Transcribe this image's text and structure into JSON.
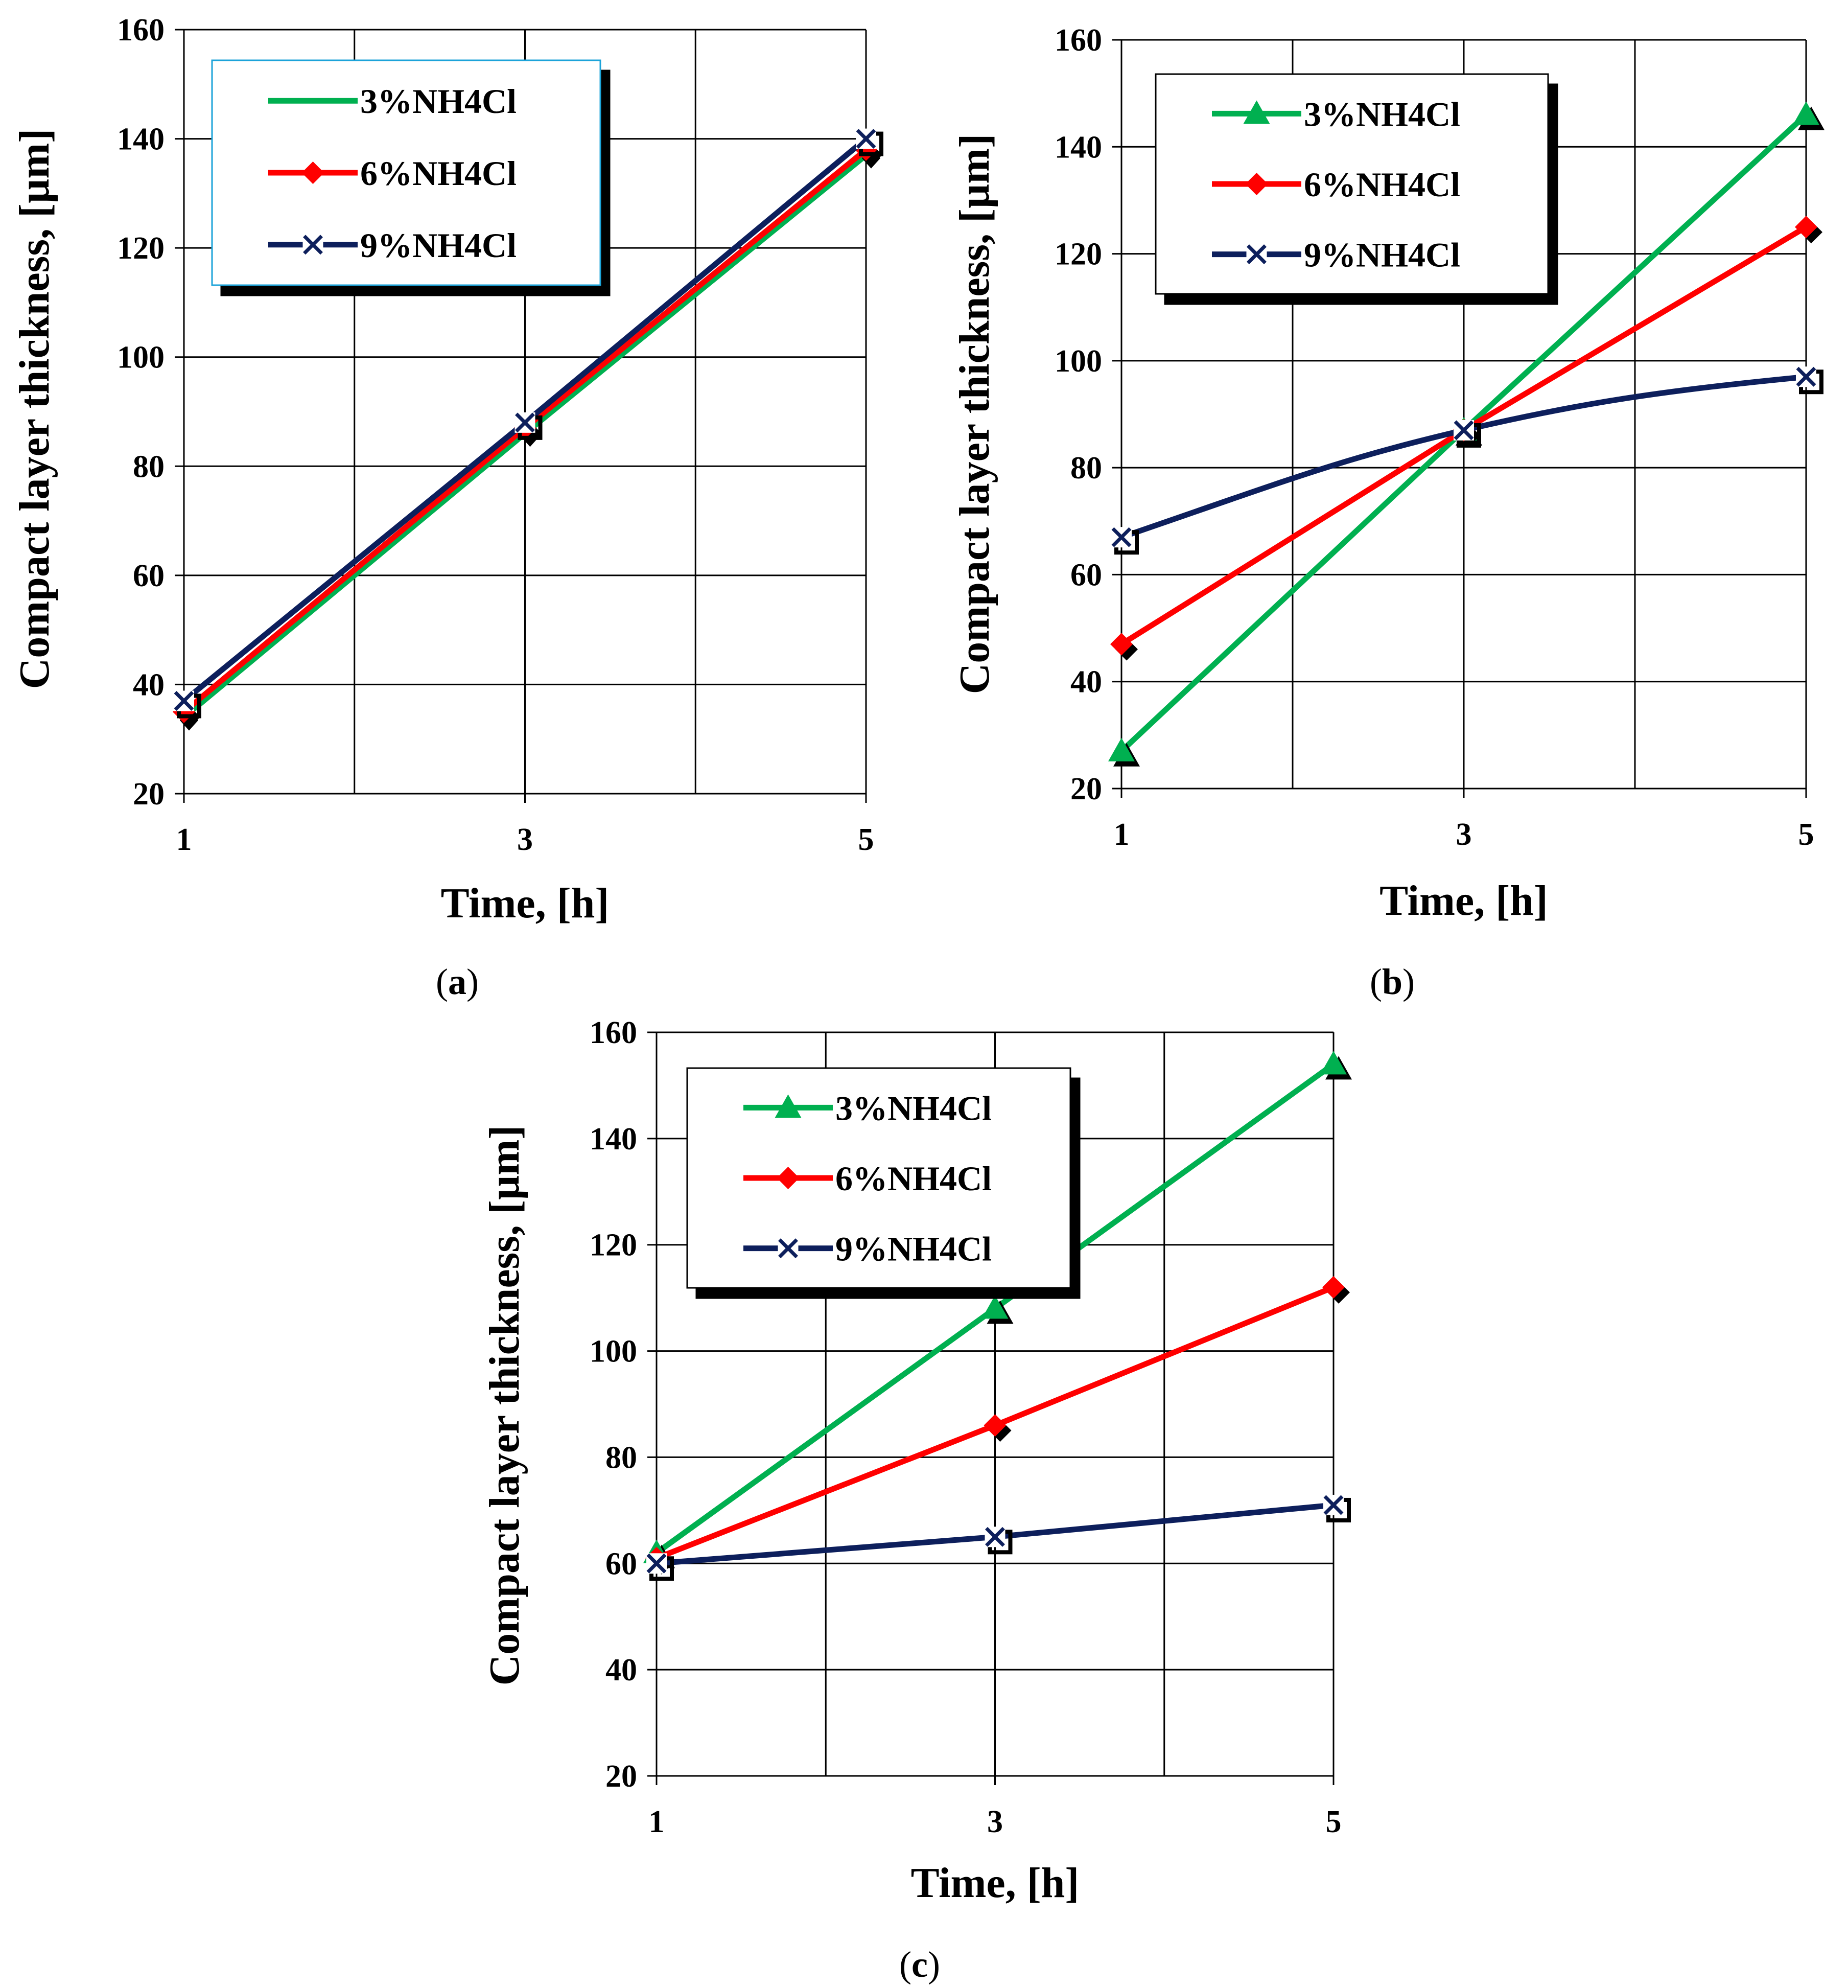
{
  "colors": {
    "green": "#00b050",
    "red": "#ff0000",
    "navy": "#0d1f5c",
    "shadow": "#000000",
    "grid": "#000000"
  },
  "chart_data": [
    {
      "id": "a",
      "type": "line",
      "caption": "a",
      "x": [
        1,
        3,
        5
      ],
      "xticks": [
        "1",
        "3",
        "5"
      ],
      "xlim": [
        1,
        5
      ],
      "ylim": [
        20,
        160
      ],
      "yticks": [
        "20",
        "40",
        "60",
        "80",
        "100",
        "120",
        "140",
        "160"
      ],
      "xlabel": "Time, [h]",
      "ylabel": "Compact layer thickness, [µm]",
      "series": [
        {
          "name": "3%NH4Cl",
          "values": [
            34,
            86,
            137
          ],
          "color": "#00b050",
          "marker": "none",
          "curve": "straight"
        },
        {
          "name": "6%NH4Cl",
          "values": [
            35,
            87,
            138
          ],
          "color": "#ff0000",
          "marker": "diamond",
          "curve": "straight"
        },
        {
          "name": "9%NH4Cl",
          "values": [
            37,
            88,
            140
          ],
          "color": "#0d1f5c",
          "marker": "x",
          "curve": "straight"
        }
      ]
    },
    {
      "id": "b",
      "type": "line",
      "caption": "b",
      "x": [
        1,
        3,
        5
      ],
      "xticks": [
        "1",
        "3",
        "5"
      ],
      "xlim": [
        1,
        5
      ],
      "ylim": [
        20,
        160
      ],
      "yticks": [
        "20",
        "40",
        "60",
        "80",
        "100",
        "120",
        "140",
        "160"
      ],
      "xlabel": "Time, [h]",
      "ylabel": "Compact layer thickness, [µm]",
      "series": [
        {
          "name": "3%NH4Cl",
          "values": [
            27,
            87,
            146
          ],
          "color": "#00b050",
          "marker": "triangle",
          "curve": "straight"
        },
        {
          "name": "6%NH4Cl",
          "values": [
            47,
            87,
            125
          ],
          "color": "#ff0000",
          "marker": "diamond",
          "curve": "straight"
        },
        {
          "name": "9%NH4Cl",
          "values": [
            67,
            87,
            97
          ],
          "color": "#0d1f5c",
          "marker": "x",
          "curve": "smooth"
        }
      ]
    },
    {
      "id": "c",
      "type": "line",
      "caption": "c",
      "x": [
        1,
        3,
        5
      ],
      "xticks": [
        "1",
        "3",
        "5"
      ],
      "xlim": [
        1,
        5
      ],
      "ylim": [
        20,
        160
      ],
      "yticks": [
        "20",
        "40",
        "60",
        "80",
        "100",
        "120",
        "140",
        "160"
      ],
      "xlabel": "Time, [h]",
      "ylabel": "Compact layer thickness, [µm]",
      "series": [
        {
          "name": "3%NH4Cl",
          "values": [
            62,
            108,
            154
          ],
          "color": "#00b050",
          "marker": "triangle",
          "curve": "straight"
        },
        {
          "name": "6%NH4Cl",
          "values": [
            61,
            86,
            112
          ],
          "color": "#ff0000",
          "marker": "diamond",
          "curve": "straight"
        },
        {
          "name": "9%NH4Cl",
          "values": [
            60,
            65,
            71
          ],
          "color": "#0d1f5c",
          "marker": "x",
          "curve": "straight"
        }
      ]
    }
  ]
}
